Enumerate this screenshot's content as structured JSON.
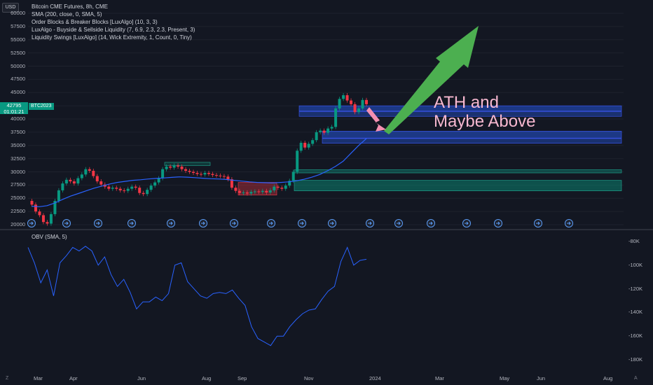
{
  "legend": {
    "currency": "USD",
    "lines": [
      "Bitcoin CME Futures, 8h, CME",
      "SMA (200, close, 0, SMA, 5)",
      "Order Blocks & Breaker Blocks [LuxAlgo] (10, 3, 3)",
      "LuxAlgo - Buyside & Sellside Liquidity (7, 6.9, 2.3, 2.3, Present, 3)",
      "Liquidity Swings [LuxAlgo] (14, Wick Extremity, 1, Count, 0, Tiny)"
    ]
  },
  "price_badge": {
    "price": "42795",
    "countdown": "01:01:21",
    "symbol": "BTC2023"
  },
  "annotation": {
    "line1": "ATH and",
    "line2": "Maybe Above"
  },
  "obv_legend": "OBV (SMA, 5)",
  "corner_icons": {
    "left": "Z",
    "right": "A"
  },
  "colors": {
    "up": "#089981",
    "down": "#f23645",
    "sma": "#2962ff",
    "obv": "#2962ff",
    "arrow": "#4caf50",
    "annotation": "#f7b8d0"
  },
  "chart_data": [
    {
      "type": "line",
      "title": "Bitcoin CME Futures, 8h, CME",
      "y_ticks": [
        "60000",
        "57500",
        "55000",
        "52500",
        "50000",
        "47500",
        "45000",
        "42500",
        "40000",
        "37500",
        "35000",
        "32500",
        "30000",
        "27500",
        "25000",
        "22500",
        "20000"
      ],
      "ylim": [
        20000,
        61000
      ],
      "x_ticks": [
        "Mar",
        "Apr",
        "Jun",
        "Aug",
        "Sep",
        "Nov",
        "2024",
        "Mar",
        "May",
        "Jun",
        "Aug"
      ],
      "series": [
        {
          "values": [
            24500,
            23800,
            22500,
            21800,
            20500,
            20200,
            22000,
            24500,
            26500,
            27800,
            28500,
            28200,
            27800,
            28800,
            29500,
            30500,
            30200,
            29200,
            28200,
            27600,
            27200,
            26800,
            27000,
            26800,
            26500,
            26400,
            26800,
            27200,
            27000,
            26000,
            25800,
            26600,
            27400,
            28000,
            28800,
            30500,
            31000,
            30800,
            31200,
            31000,
            30500,
            30200,
            30000,
            29800,
            29600,
            29500,
            29800,
            29600,
            29400,
            29300,
            29200,
            29100,
            28600,
            27000,
            26400,
            26000,
            26100,
            25900,
            26200,
            26300,
            26200,
            26400,
            26100,
            26500,
            27200,
            27000,
            26800,
            27400,
            28300,
            30000,
            34000,
            35500,
            34600,
            35300,
            36000,
            37500,
            37800,
            37400,
            38200,
            38500,
            42000,
            43800,
            44500,
            43500,
            42800,
            41300,
            42000,
            43600,
            42800
          ]
        },
        {
          "name": "SMA (200, close, 0, SMA, 5)",
          "values": [
            23500,
            23400,
            23600,
            24100,
            24800,
            25400,
            25900,
            26400,
            26900,
            27300,
            27700,
            28000,
            28200,
            28400,
            28500,
            28650,
            28750,
            28850,
            28950,
            29050,
            29000,
            28900,
            28800,
            28700,
            28650,
            28550,
            28400,
            28250,
            28100,
            28000,
            27950,
            27900,
            28000,
            28100,
            28300,
            28600,
            29000,
            29500,
            30200,
            31000,
            32000,
            33500,
            35000,
            36300
          ]
        },
        {
          "name": "OBV (SMA, 5)",
          "values": [
            -85000,
            -98000,
            -115000,
            -104000,
            -126000,
            -98000,
            -92000,
            -85000,
            -88000,
            -84000,
            -88000,
            -100000,
            -93000,
            -108000,
            -118000,
            -112000,
            -123000,
            -137000,
            -131000,
            -131000,
            -127000,
            -130000,
            -124000,
            -100000,
            -98000,
            -114000,
            -120000,
            -126000,
            -128000,
            -124000,
            -123000,
            -124000,
            -121000,
            -128000,
            -134000,
            -152000,
            -162000,
            -165000,
            -168000,
            -160000,
            -160000,
            -152000,
            -146000,
            -141000,
            -138000,
            -137000,
            -129000,
            -122000,
            -118000,
            -97000,
            -85000,
            -100000,
            -96000,
            -95000
          ]
        }
      ]
    }
  ]
}
